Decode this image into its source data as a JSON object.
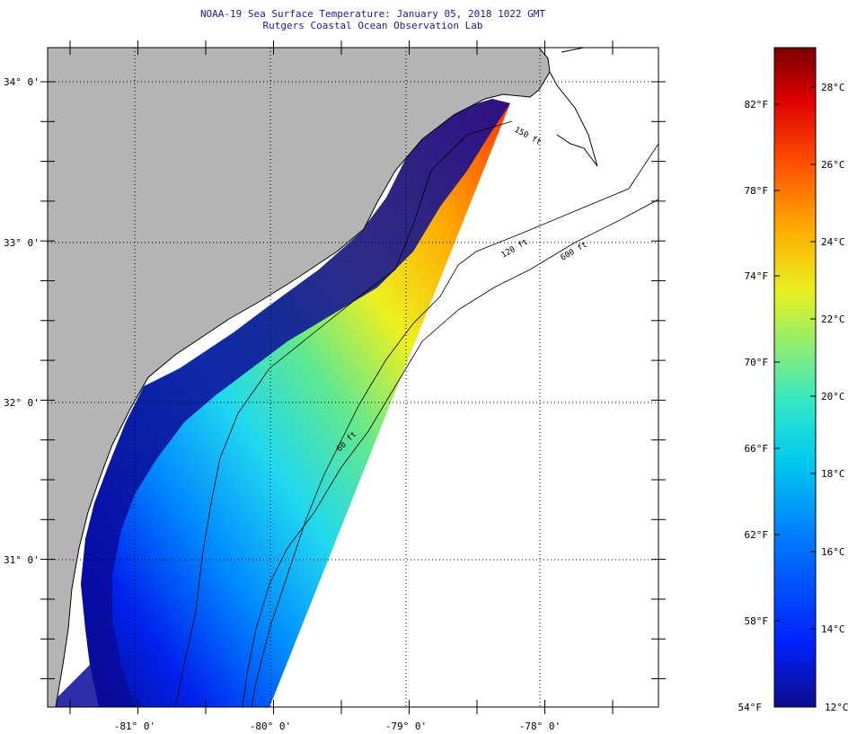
{
  "header": {
    "title": "NOAA-19 Sea Surface Temperature:  January 05, 2018 1022 GMT",
    "subtitle": "Rutgers Coastal Ocean Observation Lab"
  },
  "map": {
    "lat_labels": [
      "34° 0'",
      "33° 0'",
      "32° 0'",
      "31° 0'"
    ],
    "lon_labels": [
      "-81° 0'",
      "-80° 0'",
      "-79° 0'",
      "-78° 0'"
    ],
    "contour_labels": [
      "120 ft",
      "600 ft",
      "60 ft",
      "150 ft"
    ],
    "colors": {
      "land": "#b4b4b4",
      "ocean_nodata": "#ffffff",
      "grid": "#000000"
    }
  },
  "colorbar": {
    "fahrenheit": [
      "82°F",
      "78°F",
      "74°F",
      "70°F",
      "66°F",
      "62°F",
      "58°F",
      "54°F"
    ],
    "celsius": [
      "28°C",
      "26°C",
      "24°C",
      "22°C",
      "20°C",
      "18°C",
      "16°C",
      "14°C",
      "12°C"
    ],
    "colors": [
      "#0b0b8a",
      "#0022ff",
      "#00aaff",
      "#22e8e8",
      "#7ee87e",
      "#e8f020",
      "#ffb000",
      "#ff4400",
      "#e00000",
      "#7a0000"
    ]
  }
}
